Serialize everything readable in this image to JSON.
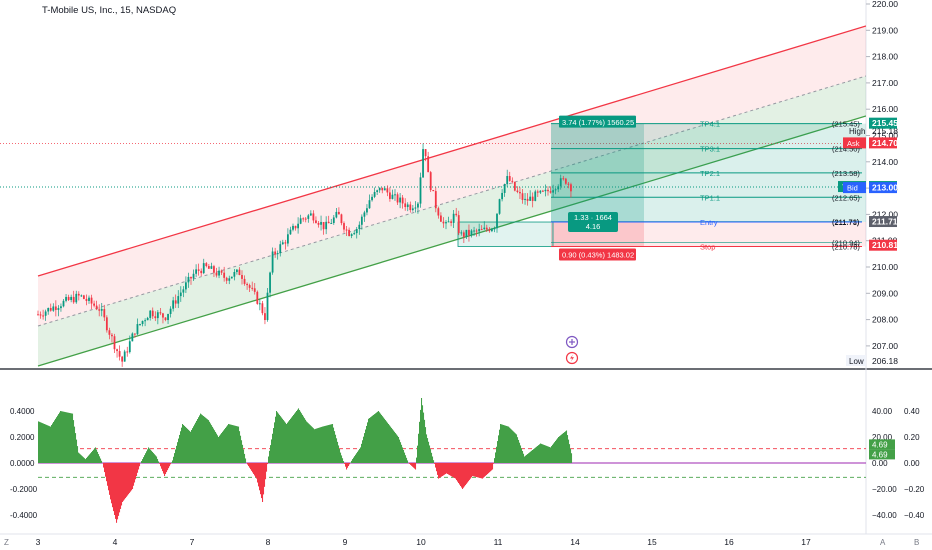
{
  "header": {
    "title": "T-Mobile US, Inc., 15, NASDAQ"
  },
  "price_axis": {
    "ticks": [
      "220.00",
      "219.00",
      "218.00",
      "217.00",
      "216.00",
      "215.00",
      "214.00",
      "213.00",
      "212.00",
      "211.00",
      "210.00",
      "209.00",
      "208.00",
      "207.00"
    ],
    "ticks_values": [
      220,
      219,
      218,
      217,
      216,
      215,
      214,
      213,
      212,
      211,
      210,
      209,
      208,
      207
    ],
    "low_label": "Low",
    "low_value": "206.18",
    "high_label": "High",
    "high_value": "215.18"
  },
  "price_badges": [
    {
      "label": "",
      "value": "215.45",
      "price": 215.45,
      "color": "#089981"
    },
    {
      "label": "Ask",
      "value": "214.70",
      "price": 214.7,
      "color": "#f23645"
    },
    {
      "label": "TMUS",
      "value": "213.04",
      "price": 213.04,
      "color": "#089981"
    },
    {
      "label": "Bid",
      "value": "213.00",
      "price": 213.0,
      "color": "#2962ff"
    },
    {
      "label": "",
      "value": "211.71",
      "price": 211.71,
      "color": "#5d606b"
    },
    {
      "label": "",
      "value": "210.81",
      "price": 210.81,
      "color": "#f23645"
    }
  ],
  "position_tool": {
    "target_label": "3.74 (1.77%) 1560.25",
    "risk_reward_line1": "1.33 · 1664",
    "risk_reward_line2": "4.16",
    "stop_label": "0.90 (0.43%) 1483.02",
    "levels": [
      {
        "name": "TP4:1",
        "value": "(215.45)",
        "price": 215.45
      },
      {
        "name": "TP3:1",
        "value": "(214.50)",
        "price": 214.5
      },
      {
        "name": "TP2:1",
        "value": "(213.58)",
        "price": 213.58
      },
      {
        "name": "TP1:1",
        "value": "(212.65)",
        "price": 212.65
      },
      {
        "name": "",
        "value": "(211.73)",
        "price": 211.73
      },
      {
        "name": "Entry",
        "value": "(211.71)",
        "price": 211.71
      },
      {
        "name": "",
        "value": "(210.94)",
        "price": 210.94
      },
      {
        "name": "Stop",
        "value": "(210.78)",
        "price": 210.78
      }
    ],
    "colors": {
      "profit": "#089981",
      "loss": "#f23645"
    }
  },
  "time_axis": {
    "labels": [
      "3",
      "4",
      "7",
      "8",
      "9",
      "10",
      "11",
      "14",
      "15",
      "16",
      "17"
    ],
    "label_x": [
      38,
      115,
      192,
      268,
      345,
      421,
      498,
      575,
      652,
      729,
      806
    ]
  },
  "oscillator": {
    "left_ticks": [
      "0.4000",
      "0.2000",
      "0.0000",
      "-0.2000",
      "-0.4000"
    ],
    "left_values": [
      0.4,
      0.2,
      0,
      -0.2,
      -0.4
    ],
    "mid_ticks": [
      "40.00",
      "20.00",
      "0.00",
      "−20.00",
      "−40.00"
    ],
    "mid_values": [
      40,
      20,
      0,
      -20,
      -40
    ],
    "right_ticks": [
      "0.40",
      "0.20",
      "0.00",
      "−0.20",
      "−0.40"
    ],
    "badges": [
      "4.69",
      "4.69"
    ],
    "positive_color": "#43a047",
    "negative_color": "#f23645"
  },
  "bottom_corner": {
    "left": "Z",
    "mid": "A",
    "right": "B"
  },
  "colors": {
    "up": "#089981",
    "down": "#f23645",
    "channel_upper": "#f23645",
    "channel_lower": "#43a047"
  }
}
